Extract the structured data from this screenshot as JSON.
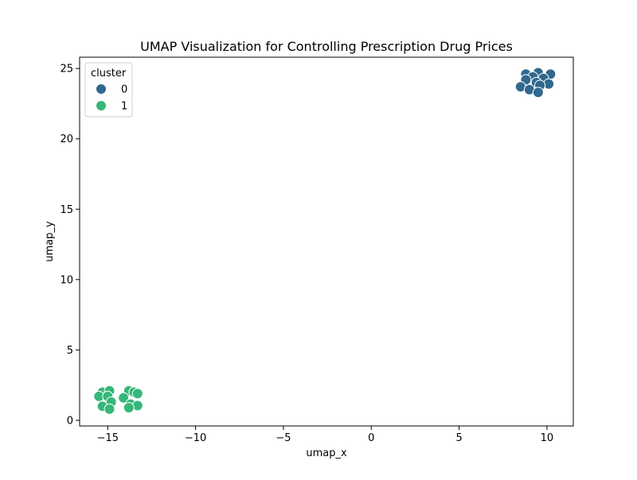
{
  "chart_data": {
    "type": "scatter",
    "title": "UMAP Visualization for Controlling Prescription Drug Prices",
    "xlabel": "umap_x",
    "ylabel": "umap_y",
    "xlim": [
      -16.6,
      11.5
    ],
    "ylim": [
      -0.4,
      25.8
    ],
    "xticks": [
      -15,
      -10,
      -5,
      0,
      5,
      10
    ],
    "yticks": [
      0,
      5,
      10,
      15,
      20,
      25
    ],
    "xtick_labels": [
      "−15",
      "−10",
      "−5",
      "0",
      "5",
      "10"
    ],
    "ytick_labels": [
      "0",
      "5",
      "10",
      "15",
      "20",
      "25"
    ],
    "grid": false,
    "legend": {
      "title": "cluster",
      "placement": "top-left",
      "entries": [
        {
          "label": "0",
          "color": "#31688e"
        },
        {
          "label": "1",
          "color": "#35b779"
        }
      ]
    },
    "series": [
      {
        "cluster": "0",
        "color": "#31688e",
        "points": [
          {
            "x": 8.8,
            "y": 24.6
          },
          {
            "x": 9.5,
            "y": 24.7
          },
          {
            "x": 10.2,
            "y": 24.6
          },
          {
            "x": 9.2,
            "y": 24.4
          },
          {
            "x": 9.8,
            "y": 24.3
          },
          {
            "x": 8.8,
            "y": 24.2
          },
          {
            "x": 9.4,
            "y": 24.0
          },
          {
            "x": 10.1,
            "y": 23.9
          },
          {
            "x": 9.6,
            "y": 23.8
          },
          {
            "x": 8.5,
            "y": 23.7
          },
          {
            "x": 9.0,
            "y": 23.5
          },
          {
            "x": 9.5,
            "y": 23.3
          }
        ]
      },
      {
        "cluster": "1",
        "color": "#35b779",
        "points": [
          {
            "x": -15.3,
            "y": 2.0
          },
          {
            "x": -14.9,
            "y": 2.1
          },
          {
            "x": -13.8,
            "y": 2.1
          },
          {
            "x": -13.5,
            "y": 2.0
          },
          {
            "x": -13.3,
            "y": 1.9
          },
          {
            "x": -15.5,
            "y": 1.7
          },
          {
            "x": -15.0,
            "y": 1.7
          },
          {
            "x": -14.1,
            "y": 1.6
          },
          {
            "x": -14.8,
            "y": 1.3
          },
          {
            "x": -13.7,
            "y": 1.15
          },
          {
            "x": -15.3,
            "y": 1.0
          },
          {
            "x": -13.3,
            "y": 1.05
          },
          {
            "x": -13.8,
            "y": 0.9
          },
          {
            "x": -14.9,
            "y": 0.8
          }
        ]
      }
    ]
  }
}
